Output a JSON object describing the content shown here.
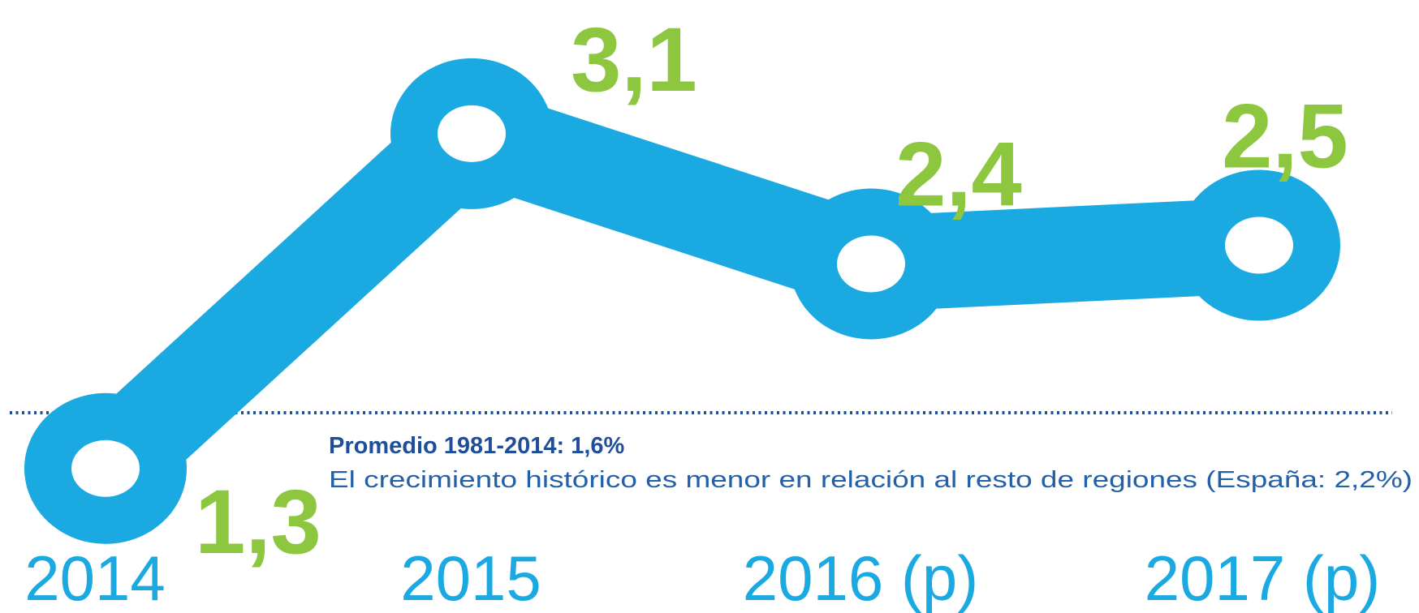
{
  "chart_data": {
    "type": "line",
    "categories": [
      "2014",
      "2015",
      "2016 (p)",
      "2017 (p)"
    ],
    "values": [
      1.3,
      3.1,
      2.4,
      2.5
    ],
    "value_labels": [
      "1,3",
      "3,1",
      "2,4",
      "2,5"
    ],
    "color": "#1ba9e1",
    "label_color": "#8dc63f",
    "reference_line": {
      "value": 1.6,
      "color": "#1f4e9a",
      "style": "dotted",
      "label": "Promedio 1981-2014: 1,6%",
      "note": "El crecimiento histórico es menor en relación al resto de regiones (España: 2,2%)"
    }
  }
}
